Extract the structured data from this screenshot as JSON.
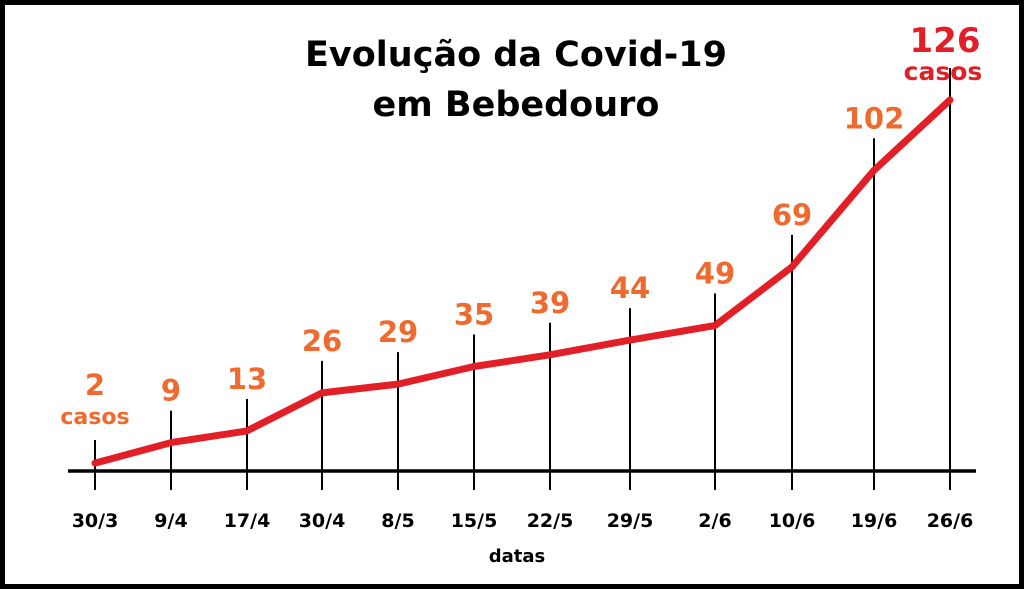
{
  "colors": {
    "curve": "#e21f26",
    "value_labels": "#ee6a2e",
    "last_value_label": "#e21f26",
    "axis": "#000000"
  },
  "chart_data": {
    "type": "line",
    "title_lines": [
      "Evolução da Covid-19",
      "em Bebedouro"
    ],
    "xlabel": "datas",
    "ylabel": "",
    "categories": [
      "30/3",
      "9/4",
      "17/4",
      "30/4",
      "8/5",
      "15/5",
      "22/5",
      "29/5",
      "2/6",
      "10/6",
      "19/6",
      "26/6"
    ],
    "values": [
      2,
      9,
      13,
      26,
      29,
      35,
      39,
      44,
      49,
      69,
      102,
      126
    ],
    "unit_label": "casos",
    "unit_label_on": [
      "30/3",
      "26/6"
    ],
    "ylim": [
      0,
      126
    ],
    "grid": false,
    "legend": "none"
  }
}
